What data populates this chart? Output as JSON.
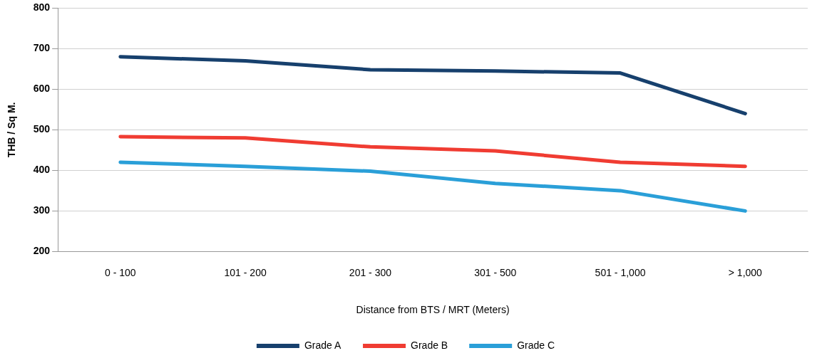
{
  "chart_data": {
    "type": "line",
    "xlabel": "Distance from BTS / MRT (Meters)",
    "ylabel": "THB / Sq M.",
    "categories": [
      "0 - 100",
      "101 - 200",
      "201 - 300",
      "301 - 500",
      "501 - 1,000",
      "> 1,000"
    ],
    "series": [
      {
        "name": "Grade A",
        "color": "#17406d",
        "values": [
          680,
          670,
          648,
          645,
          640,
          540
        ]
      },
      {
        "name": "Grade B",
        "color": "#f03c32",
        "values": [
          483,
          480,
          458,
          448,
          420,
          410
        ]
      },
      {
        "name": "Grade C",
        "color": "#2a9fd8",
        "values": [
          420,
          410,
          398,
          368,
          350,
          300
        ]
      }
    ],
    "ylim": [
      200,
      800
    ],
    "yticks": [
      200,
      300,
      400,
      500,
      600,
      700,
      800
    ],
    "grid": "y",
    "legend": "bottom",
    "marker": "none",
    "line_style": "solid"
  }
}
